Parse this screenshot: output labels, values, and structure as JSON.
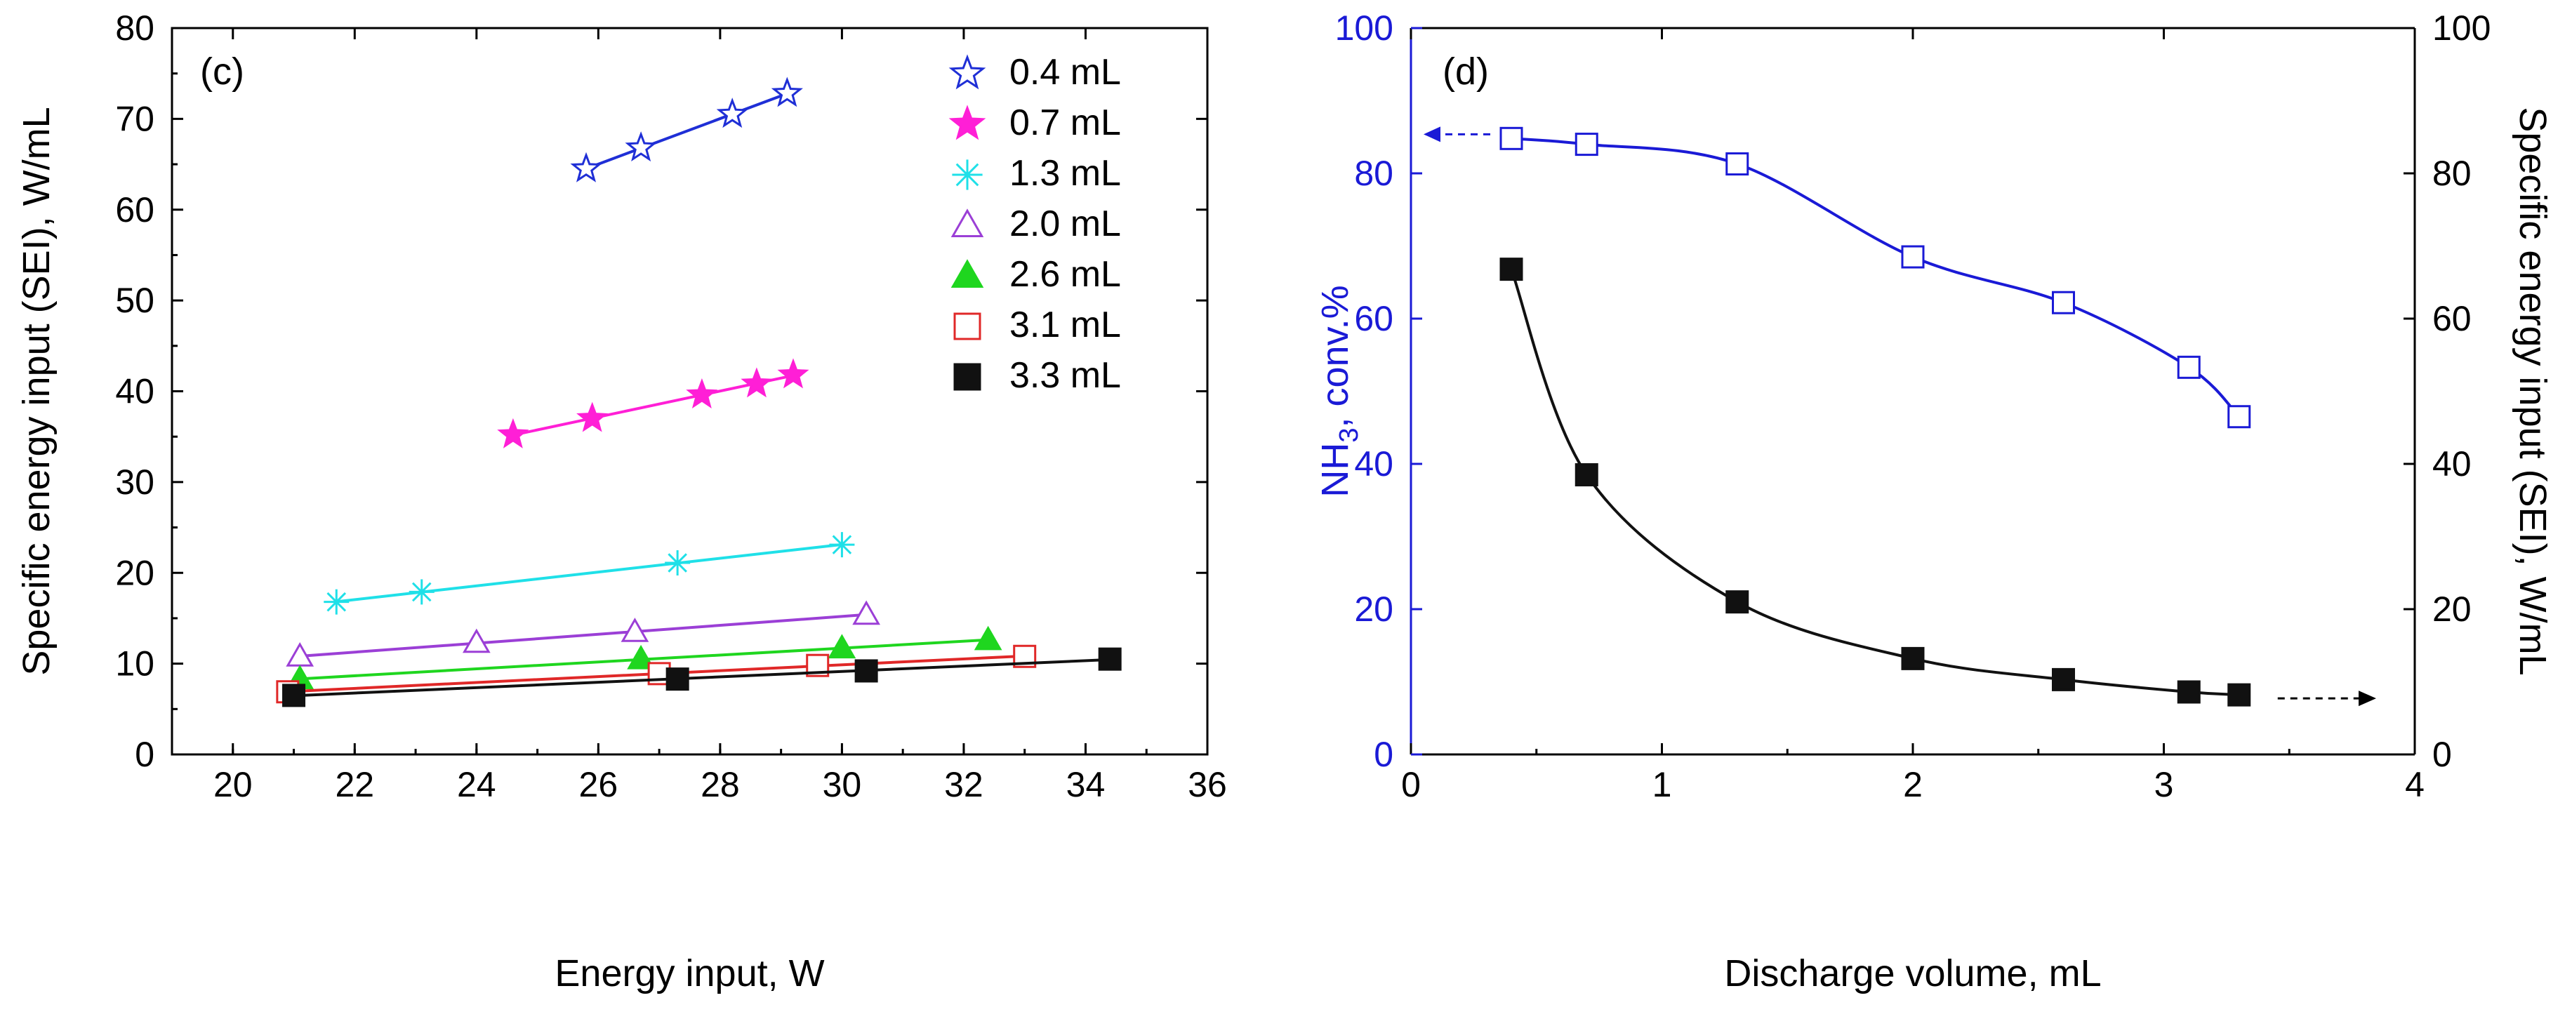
{
  "chart_data": [
    {
      "type": "line",
      "panel_label": "(c)",
      "title": "",
      "xlabel": "Energy input, W",
      "ylabel": "Specific energy input (SEI), W/mL",
      "xlim": [
        19,
        36
      ],
      "ylim": [
        0,
        80
      ],
      "xticks": [
        20,
        22,
        24,
        26,
        28,
        30,
        32,
        34,
        36
      ],
      "yticks": [
        0,
        10,
        20,
        30,
        40,
        50,
        60,
        70,
        80
      ],
      "legend_position": "top-right",
      "series": [
        {
          "name": "0.4 mL",
          "marker": "star-open",
          "color": "#1f2fd6",
          "x": [
            25.8,
            26.7,
            28.2,
            29.1
          ],
          "y": [
            64.5,
            66.8,
            70.5,
            72.8
          ]
        },
        {
          "name": "0.7 mL",
          "marker": "star-filled",
          "color": "#ff1fd6",
          "x": [
            24.6,
            25.9,
            27.7,
            28.6,
            29.2
          ],
          "y": [
            35.2,
            37.0,
            39.6,
            40.8,
            41.8
          ]
        },
        {
          "name": "1.3 mL",
          "marker": "asterisk",
          "color": "#1fe0e8",
          "x": [
            21.7,
            23.1,
            27.3,
            30.0
          ],
          "y": [
            16.8,
            17.9,
            21.1,
            23.1
          ]
        },
        {
          "name": "2.0 mL",
          "marker": "triangle-open",
          "color": "#9b3fd6",
          "x": [
            21.1,
            24.0,
            26.6,
            30.4
          ],
          "y": [
            10.8,
            12.3,
            13.5,
            15.4
          ]
        },
        {
          "name": "2.6 mL",
          "marker": "triangle-filled",
          "color": "#1fd61f",
          "x": [
            21.1,
            26.7,
            30.0,
            32.4
          ],
          "y": [
            8.3,
            10.5,
            11.7,
            12.6
          ]
        },
        {
          "name": "3.1 mL",
          "marker": "square-open",
          "color": "#e02828",
          "x": [
            20.9,
            27.0,
            29.6,
            33.0
          ],
          "y": [
            6.9,
            8.9,
            9.8,
            10.8
          ]
        },
        {
          "name": "3.3 mL",
          "marker": "square-filled",
          "color": "#111111",
          "x": [
            21.0,
            27.3,
            30.4,
            34.4
          ],
          "y": [
            6.5,
            8.3,
            9.2,
            10.5
          ]
        }
      ]
    },
    {
      "type": "line",
      "panel_label": "(d)",
      "title": "",
      "xlabel": "Discharge volume, mL",
      "ylabel_left": "NH3, conv.%",
      "ylabel_left_main": "NH",
      "ylabel_left_sub": "3",
      "ylabel_left_rest": ", conv.%",
      "ylabel_right": "Specific energy input (SEI), W/mL",
      "xlim": [
        0,
        4
      ],
      "ylim_left": [
        0,
        100
      ],
      "ylim_right": [
        0,
        100
      ],
      "xticks": [
        0,
        1,
        2,
        3,
        4
      ],
      "yticks_left": [
        0,
        20,
        40,
        60,
        80,
        100
      ],
      "yticks_right": [
        0,
        20,
        40,
        60,
        80,
        100
      ],
      "left_axis_color": "#1a1ad6",
      "series": [
        {
          "name": "NH3 conversion",
          "axis": "left",
          "marker": "square-open",
          "color": "#1a1ad6",
          "x": [
            0.4,
            0.7,
            1.3,
            2.0,
            2.6,
            3.1,
            3.3
          ],
          "y": [
            84.8,
            84.0,
            81.3,
            68.5,
            62.2,
            53.3,
            46.5
          ]
        },
        {
          "name": "SEI",
          "axis": "right",
          "marker": "square-filled",
          "color": "#111111",
          "x": [
            0.4,
            0.7,
            1.3,
            2.0,
            2.6,
            3.1,
            3.3
          ],
          "y": [
            66.8,
            38.5,
            21.0,
            13.2,
            10.3,
            8.6,
            8.2
          ]
        }
      ]
    }
  ]
}
